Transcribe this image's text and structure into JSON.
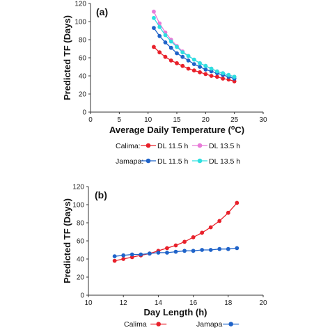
{
  "chart_data": [
    {
      "type": "line",
      "panel_label": "(a)",
      "xlabel": "Average Daily Temperature (",
      "xlabel_sup": "o",
      "xlabel_end": "C)",
      "ylabel": "Predicted TF (Days)",
      "xlim": [
        0,
        30
      ],
      "ylim": [
        0,
        120
      ],
      "xticks": [
        0,
        5,
        10,
        15,
        20,
        25,
        30
      ],
      "yticks": [
        0,
        20,
        40,
        60,
        80,
        100,
        120
      ],
      "x": [
        11,
        12,
        13,
        14,
        15,
        16,
        17,
        18,
        19,
        20,
        21,
        22,
        23,
        24,
        25
      ],
      "series": [
        {
          "group": "Calima",
          "name": "DL 11.5 h",
          "color": "#e8202a",
          "values": [
            72,
            66,
            61,
            57,
            54,
            51,
            48,
            46,
            44,
            42,
            40,
            39,
            37,
            36,
            34
          ]
        },
        {
          "group": "Calima",
          "name": "DL 13.5 h",
          "color": "#e87ad8",
          "values": [
            111,
            98,
            88,
            80,
            73,
            67,
            62,
            58,
            54,
            51,
            48,
            45,
            43,
            41,
            39
          ]
        },
        {
          "group": "Jamapa",
          "name": "DL 11.5 h",
          "color": "#1f63c9",
          "values": [
            93,
            84,
            77,
            71,
            65,
            61,
            57,
            53,
            50,
            47,
            45,
            43,
            41,
            39,
            37
          ]
        },
        {
          "group": "Jamapa",
          "name": "DL 13.5 h",
          "color": "#2de0e0",
          "values": [
            104,
            94,
            85,
            78,
            72,
            66,
            62,
            58,
            54,
            51,
            48,
            45,
            43,
            41,
            39
          ]
        }
      ],
      "legend_groups": [
        "Calima:",
        "Jamapa:"
      ]
    },
    {
      "type": "line",
      "panel_label": "(b)",
      "xlabel": "Day Length (h)",
      "ylabel": "Predicted TF (Days)",
      "xlim": [
        10,
        20
      ],
      "ylim": [
        0,
        120
      ],
      "xticks": [
        10,
        12,
        14,
        16,
        18,
        20
      ],
      "yticks": [
        0,
        20,
        40,
        60,
        80,
        100,
        120
      ],
      "x": [
        11.5,
        12,
        12.5,
        13,
        13.5,
        14,
        14.5,
        15,
        15.5,
        16,
        16.5,
        17,
        17.5,
        18,
        18.5
      ],
      "series": [
        {
          "name": "Calima",
          "color": "#e8202a",
          "values": [
            38,
            40,
            42,
            44,
            46,
            49,
            52,
            55,
            59,
            64,
            69,
            75,
            82,
            91,
            102
          ]
        },
        {
          "name": "Jamapa",
          "color": "#1f63c9",
          "values": [
            43,
            44,
            45,
            45,
            46,
            47,
            47,
            48,
            49,
            49,
            50,
            50,
            51,
            51,
            52
          ]
        }
      ]
    }
  ]
}
